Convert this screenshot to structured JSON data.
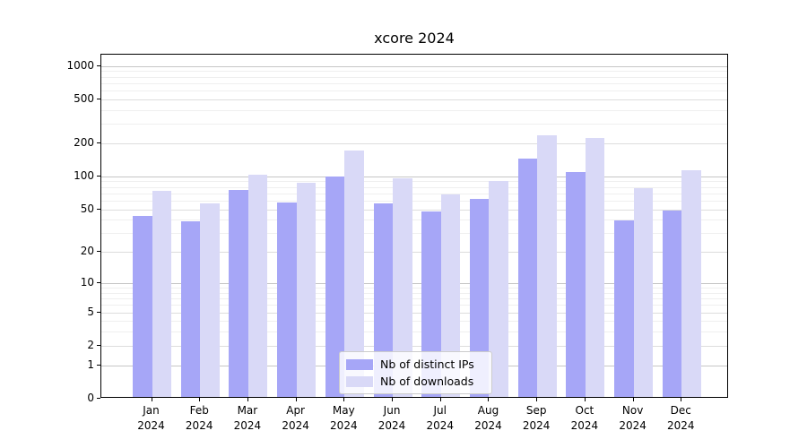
{
  "chart_data": {
    "type": "bar",
    "title": "xcore 2024",
    "categories": [
      "Jan 2024",
      "Feb 2024",
      "Mar 2024",
      "Apr 2024",
      "May 2024",
      "Jun 2024",
      "Jul 2024",
      "Aug 2024",
      "Sep 2024",
      "Oct 2024",
      "Nov 2024",
      "Dec 2024"
    ],
    "series": [
      {
        "name": "Nb of distinct IPs",
        "color": "#a6a6f7",
        "values": [
          42,
          37,
          72,
          56,
          96,
          55,
          46,
          60,
          140,
          106,
          38,
          47
        ]
      },
      {
        "name": "Nb of downloads",
        "color": "#d9d9f7",
        "values": [
          71,
          55,
          100,
          85,
          165,
          93,
          66,
          87,
          228,
          215,
          75,
          110
        ]
      }
    ],
    "xlabel": "",
    "ylabel": "",
    "yscale": "log1p",
    "ylim": [
      0,
      1263
    ],
    "yticks": [
      0,
      1,
      2,
      5,
      10,
      20,
      50,
      100,
      200,
      500,
      1000
    ],
    "yminorticks": [
      3,
      4,
      6,
      7,
      8,
      9,
      30,
      40,
      60,
      70,
      80,
      90,
      300,
      400,
      600,
      700,
      800,
      900
    ],
    "grid": true,
    "legend_position": "lower center",
    "colors": {
      "bar_ips": "#a6a6f7",
      "bar_downloads": "#d9d9f7",
      "grid_decade": "#c6c6c6",
      "grid_major": "#dddddd",
      "grid_minor": "#efefef",
      "spine": "#000000",
      "legend_border": "#cccccc"
    }
  }
}
